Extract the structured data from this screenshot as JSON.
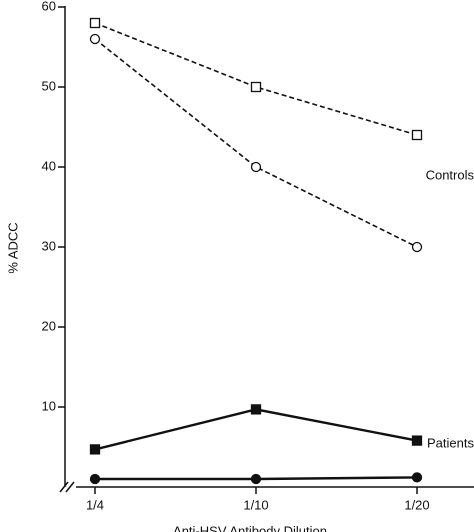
{
  "chart_data": {
    "type": "line",
    "y_label": "% ADCC",
    "x_label": "Anti-HSV Antibody Dilution",
    "categories": [
      "1/4",
      "1/10",
      "1/20"
    ],
    "ylim": [
      0,
      60
    ],
    "yticks": [
      10,
      20,
      30,
      40,
      50,
      60
    ],
    "annotations": [
      "Controls",
      "Patients"
    ],
    "series": [
      {
        "color": "#111111",
        "marker": "square",
        "filled": false,
        "dashed": true,
        "values": [
          58,
          50,
          44
        ]
      },
      {
        "color": "#111111",
        "marker": "circle",
        "filled": false,
        "dashed": true,
        "values": [
          56,
          40,
          30
        ]
      },
      {
        "color": "#111111",
        "marker": "square",
        "filled": true,
        "dashed": false,
        "values": [
          4.7,
          9.7,
          5.8
        ]
      },
      {
        "color": "#111111",
        "marker": "circle",
        "filled": true,
        "dashed": false,
        "values": [
          1,
          1,
          1.2
        ]
      }
    ]
  }
}
